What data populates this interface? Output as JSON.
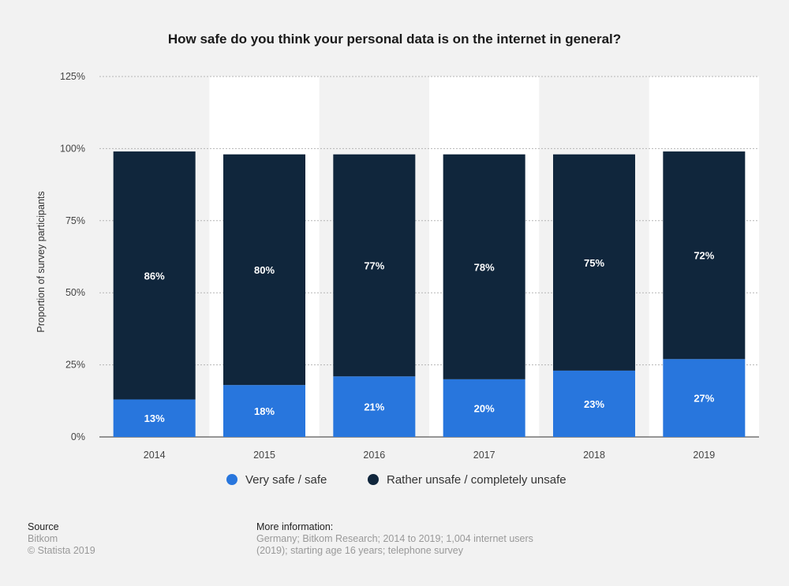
{
  "chart_data": {
    "type": "bar",
    "stacked": true,
    "title": "How safe do you think your personal data is on the internet in general?",
    "ylabel": "Proportion of survey participants",
    "xlabel": "",
    "categories": [
      "2014",
      "2015",
      "2016",
      "2017",
      "2018",
      "2019"
    ],
    "series": [
      {
        "name": "Very safe / safe",
        "color": "#2876dd",
        "values": [
          13,
          18,
          21,
          20,
          23,
          27
        ],
        "labels": [
          "13%",
          "18%",
          "21%",
          "20%",
          "23%",
          "27%"
        ]
      },
      {
        "name": "Rather unsafe / completely unsafe",
        "color": "#10263c",
        "values": [
          86,
          80,
          77,
          78,
          75,
          72
        ],
        "labels": [
          "86%",
          "80%",
          "77%",
          "78%",
          "75%",
          "72%"
        ]
      }
    ],
    "ylim": [
      0,
      125
    ],
    "yticks": [
      0,
      25,
      50,
      75,
      100,
      125
    ],
    "ytick_labels": [
      "0%",
      "25%",
      "50%",
      "75%",
      "100%",
      "125%"
    ],
    "grid": true,
    "legend_position": "bottom"
  },
  "footer": {
    "source_heading": "Source",
    "source_name": "Bitkom",
    "copyright": "© Statista 2019",
    "info_heading": "More information:",
    "info_line1": "Germany; Bitkom Research; 2014 to 2019; 1,004 internet users",
    "info_line2": "(2019); starting age 16 years; telephone survey"
  }
}
